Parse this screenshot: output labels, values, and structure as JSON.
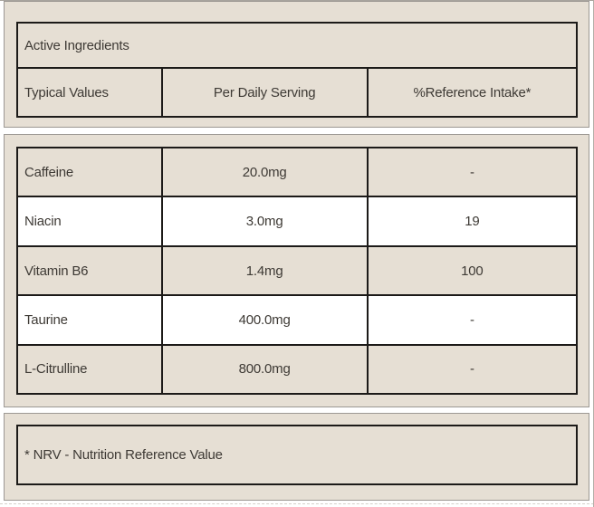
{
  "table": {
    "section_title": "Active Ingredients",
    "columns": [
      "Typical Values",
      "Per Daily Serving",
      "%Reference Intake*"
    ],
    "rows": [
      {
        "name": "Caffeine",
        "per_serving": "20.0mg",
        "reference_intake": "-"
      },
      {
        "name": "Niacin",
        "per_serving": "3.0mg",
        "reference_intake": "19"
      },
      {
        "name": "Vitamin B6",
        "per_serving": "1.4mg",
        "reference_intake": "100"
      },
      {
        "name": "Taurine",
        "per_serving": "400.0mg",
        "reference_intake": "-"
      },
      {
        "name": "L-Citrulline",
        "per_serving": "800.0mg",
        "reference_intake": "-"
      }
    ],
    "footnote": "* NRV - Nutrition Reference Value"
  },
  "colors": {
    "panel_background": "#e6dfd4",
    "row_alt_background": "#ffffff",
    "box_border": "#1c1a18",
    "panel_border": "#9c9893",
    "text": "#3e3a35"
  }
}
